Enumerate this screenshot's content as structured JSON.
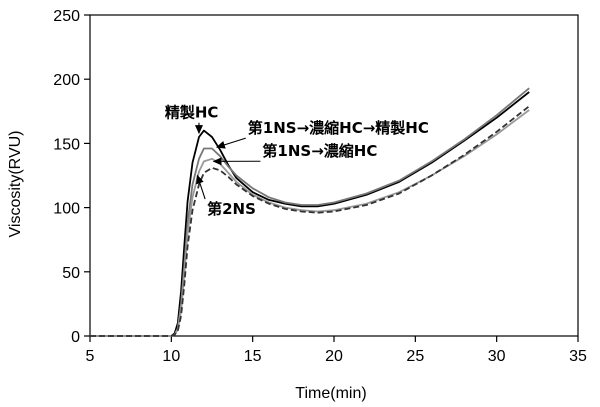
{
  "chart_data": {
    "type": "line",
    "title": "",
    "xlabel": "Time(min)",
    "ylabel": "Viscosity(RVU)",
    "xlim": [
      5,
      35
    ],
    "ylim": [
      0,
      250
    ],
    "xticks": [
      5,
      10,
      15,
      20,
      25,
      30,
      35
    ],
    "yticks": [
      0,
      50,
      100,
      150,
      200,
      250
    ],
    "grid": false,
    "legend": "none",
    "series": [
      {
        "name": "精製HC",
        "color": "#000000",
        "dash": "",
        "x": [
          5,
          10.0,
          10.2,
          10.4,
          10.6,
          10.8,
          11.0,
          11.3,
          11.7,
          12.0,
          12.5,
          13.0,
          13.5,
          14.0,
          15.0,
          16.0,
          17.0,
          18.0,
          19.0,
          20.0,
          22.0,
          24.0,
          26.0,
          28.0,
          30.0,
          32.0
        ],
        "y": [
          0,
          0,
          2,
          10,
          35,
          70,
          105,
          135,
          155,
          160,
          155,
          145,
          133,
          123,
          112,
          106,
          103,
          101,
          101,
          103,
          110,
          120,
          135,
          152,
          170,
          190
        ]
      },
      {
        "name": "第1NS→濃縮HC→精製HC",
        "color": "#777777",
        "dash": "",
        "x": [
          5,
          10.0,
          10.2,
          10.4,
          10.6,
          10.8,
          11.0,
          11.3,
          11.7,
          12.0,
          12.5,
          13.0,
          13.5,
          14.0,
          15.0,
          16.0,
          17.0,
          18.0,
          19.0,
          20.0,
          22.0,
          24.0,
          26.0,
          28.0,
          30.0,
          32.0
        ],
        "y": [
          0,
          0,
          1,
          6,
          25,
          55,
          88,
          118,
          138,
          146,
          146,
          140,
          132,
          125,
          115,
          108,
          104,
          102,
          102,
          104,
          111,
          121,
          136,
          153,
          172,
          193
        ]
      },
      {
        "name": "第1NS→濃縮HC",
        "color": "#999999",
        "dash": "",
        "x": [
          5,
          10.0,
          10.2,
          10.4,
          10.6,
          10.8,
          11.0,
          11.3,
          11.7,
          12.0,
          12.5,
          13.0,
          13.5,
          14.0,
          15.0,
          16.0,
          17.0,
          18.0,
          19.0,
          20.0,
          22.0,
          24.0,
          26.0,
          28.0,
          30.0,
          32.0
        ],
        "y": [
          0,
          0,
          1,
          5,
          20,
          48,
          80,
          108,
          128,
          136,
          138,
          134,
          127,
          120,
          110,
          104,
          100,
          98,
          97,
          98,
          103,
          112,
          125,
          140,
          157,
          176
        ]
      },
      {
        "name": "第2NS",
        "color": "#333333",
        "dash": "6,3",
        "x": [
          5,
          10.0,
          10.2,
          10.4,
          10.6,
          10.8,
          11.0,
          11.3,
          11.7,
          12.0,
          12.5,
          13.0,
          13.5,
          14.0,
          15.0,
          16.0,
          17.0,
          18.0,
          19.0,
          20.0,
          22.0,
          24.0,
          26.0,
          28.0,
          30.0,
          32.0
        ],
        "y": [
          0,
          0,
          1,
          4,
          16,
          40,
          70,
          98,
          118,
          127,
          131,
          129,
          124,
          118,
          109,
          103,
          99,
          97,
          96,
          97,
          102,
          111,
          125,
          141,
          159,
          179
        ]
      }
    ],
    "annotations": [
      {
        "text": "精製HC",
        "x": 9.6,
        "y": 170,
        "arrow_to_x": 11.7,
        "arrow_to_y": 158
      },
      {
        "text": "第1NS→濃縮HC→精製HC",
        "x": 14.7,
        "y": 158,
        "arrow_to_x": 12.8,
        "arrow_to_y": 147
      },
      {
        "text": "第1NS→濃縮HC",
        "x": 15.6,
        "y": 140,
        "arrow_to_x": 12.6,
        "arrow_to_y": 136
      },
      {
        "text": "第2NS",
        "x": 12.2,
        "y": 95,
        "arrow_to_x": 11.6,
        "arrow_to_y": 125
      }
    ]
  }
}
